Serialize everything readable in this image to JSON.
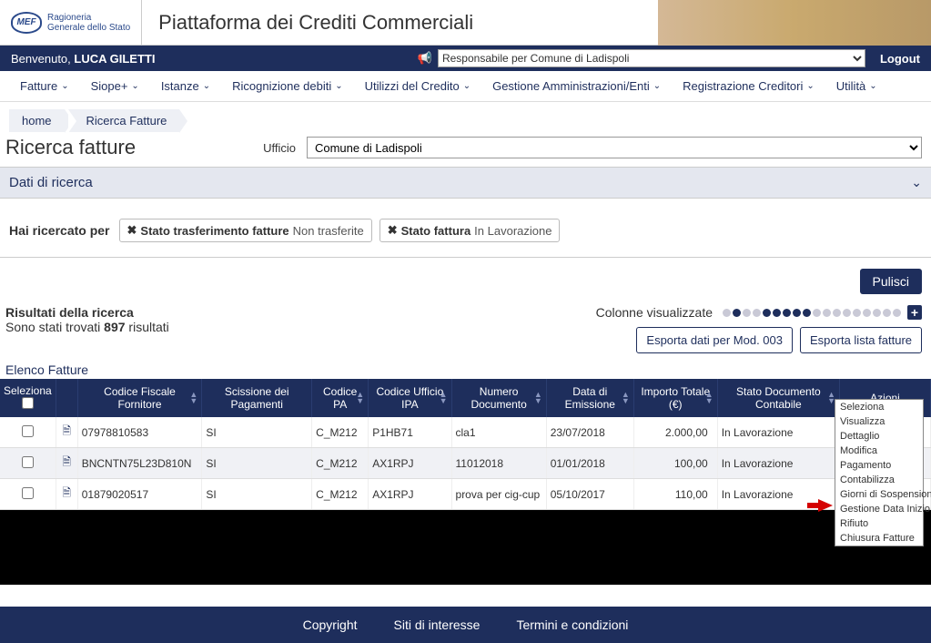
{
  "header": {
    "logo_abbr": "MEF",
    "logo_line1": "Ragioneria",
    "logo_line2": "Generale dello Stato",
    "platform_title": "Piattaforma dei Crediti Commerciali"
  },
  "topbar": {
    "welcome_prefix": "Benvenuto, ",
    "user_name": "LUCA GILETTI",
    "role_value": "Responsabile per Comune di Ladispoli",
    "logout": "Logout"
  },
  "menu": {
    "items": [
      "Fatture",
      "Siope+",
      "Istanze",
      "Ricognizione debiti",
      "Utilizzi del Credito",
      "Gestione Amministrazioni/Enti",
      "Registrazione Creditori",
      "Utilità"
    ]
  },
  "breadcrumb": {
    "items": [
      "home",
      "Ricerca Fatture"
    ]
  },
  "page": {
    "title": "Ricerca fatture",
    "ufficio_label": "Ufficio",
    "ufficio_value": "Comune di Ladispoli"
  },
  "panel": {
    "title": "Dati di ricerca"
  },
  "filters": {
    "label": "Hai ricercato per",
    "tags": [
      {
        "label": "Stato trasferimento fatture",
        "value": "Non trasferite"
      },
      {
        "label": "Stato fattura",
        "value": "In Lavorazione"
      }
    ]
  },
  "buttons": {
    "pulisci": "Pulisci",
    "export_mod": "Esporta dati per Mod. 003",
    "export_list": "Esporta lista fatture"
  },
  "results": {
    "title": "Risultati della ricerca",
    "found_prefix": "Sono stati trovati ",
    "found_count": "897",
    "found_suffix": " risultati",
    "cols_label": "Colonne visualizzate",
    "elenco": "Elenco Fatture"
  },
  "columns_dots": {
    "pattern": [
      "off",
      "on",
      "off",
      "off",
      "on",
      "on",
      "on",
      "on",
      "on",
      "off",
      "off",
      "off",
      "off",
      "off",
      "off",
      "off",
      "off",
      "off"
    ]
  },
  "table": {
    "headers": [
      "Seleziona",
      "",
      "Codice Fiscale Fornitore",
      "Scissione dei Pagamenti",
      "Codice PA",
      "Codice Ufficio IPA",
      "Numero Documento",
      "Data di Emissione",
      "Importo Totale (€)",
      "Stato Documento Contabile",
      "Azioni"
    ],
    "rows": [
      {
        "cf": "07978810583",
        "sciss": "SI",
        "cpa": "C_M212",
        "cipa": "P1HB71",
        "num": "cla1",
        "data": "23/07/2018",
        "imp": "2.000,00",
        "stato": "In Lavorazione"
      },
      {
        "cf": "BNCNTN75L23D810N",
        "sciss": "SI",
        "cpa": "C_M212",
        "cipa": "AX1RPJ",
        "num": "11012018",
        "data": "01/01/2018",
        "imp": "100,00",
        "stato": "In Lavorazione"
      },
      {
        "cf": "01879020517",
        "sciss": "SI",
        "cpa": "C_M212",
        "cipa": "AX1RPJ",
        "num": "prova per cig-cup",
        "data": "05/10/2017",
        "imp": "110,00",
        "stato": "In Lavorazione"
      }
    ]
  },
  "dropdown": {
    "items": [
      "Seleziona",
      "Visualizza",
      "Dettaglio",
      "Modifica",
      "Pagamento",
      "Contabilizza",
      "Giorni di Sospensione",
      "Gestione Data Inizio Sospensione Ricezione",
      "Rifiuto",
      "Chiusura Fatture"
    ]
  },
  "footer": {
    "items": [
      "Copyright",
      "Siti di interesse",
      "Termini e condizioni"
    ]
  },
  "colors": {
    "navy": "#1e2e5c",
    "panel_bg": "#e4e7ef",
    "row_alt": "#f0f1f5"
  }
}
